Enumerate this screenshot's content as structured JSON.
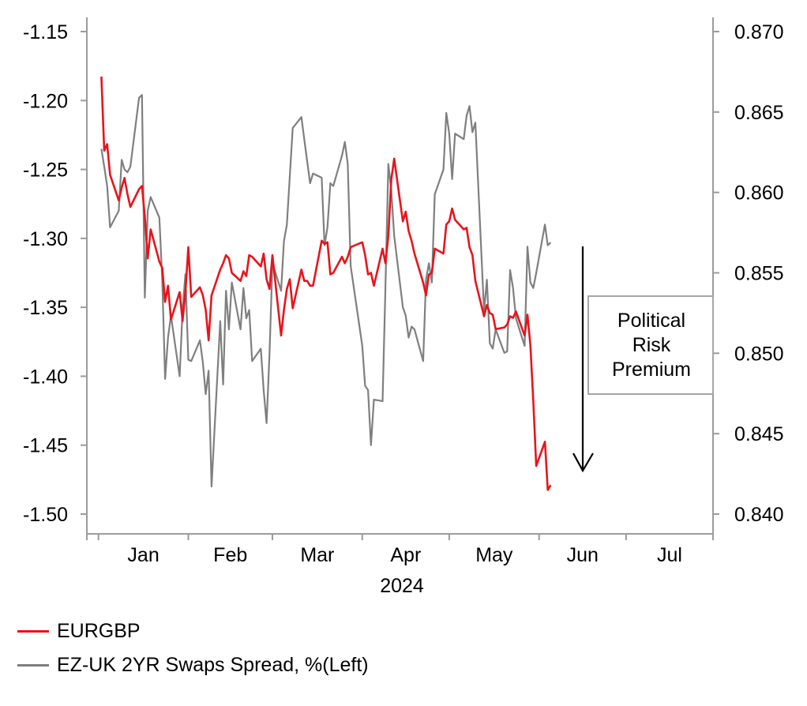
{
  "chart_data": {
    "type": "line",
    "x_axis": {
      "tick_labels": [
        "Jan",
        "Feb",
        "Mar",
        "Apr",
        "May",
        "Jun",
        "Jul"
      ],
      "year_label": "2024",
      "range": [
        "2023-12-28",
        "2024-07-31"
      ]
    },
    "y_left": {
      "range": [
        -1.5,
        -1.15
      ],
      "ticks": [
        "-1.15",
        "-1.20",
        "-1.25",
        "-1.30",
        "-1.35",
        "-1.40",
        "-1.45",
        "-1.50"
      ]
    },
    "y_right": {
      "range": [
        0.84,
        0.87
      ],
      "ticks": [
        "0.870",
        "0.865",
        "0.860",
        "0.855",
        "0.850",
        "0.845",
        "0.840"
      ]
    },
    "annotation": {
      "text_lines": [
        "Political",
        "Risk",
        "Premium"
      ],
      "arrow": "down"
    },
    "series": [
      {
        "name": "EURGBP",
        "axis": "right",
        "color": "#e8141b",
        "points": [
          [
            "2024-01-02",
            0.8672
          ],
          [
            "2024-01-03",
            0.8626
          ],
          [
            "2024-01-04",
            0.863
          ],
          [
            "2024-01-05",
            0.8611
          ],
          [
            "2024-01-08",
            0.8595
          ],
          [
            "2024-01-09",
            0.8603
          ],
          [
            "2024-01-10",
            0.8609
          ],
          [
            "2024-01-11",
            0.8599
          ],
          [
            "2024-01-12",
            0.8591
          ],
          [
            "2024-01-15",
            0.8602
          ],
          [
            "2024-01-16",
            0.8604
          ],
          [
            "2024-01-17",
            0.8585
          ],
          [
            "2024-01-18",
            0.8559
          ],
          [
            "2024-01-19",
            0.8577
          ],
          [
            "2024-01-22",
            0.8557
          ],
          [
            "2024-01-23",
            0.8553
          ],
          [
            "2024-01-24",
            0.8532
          ],
          [
            "2024-01-25",
            0.8542
          ],
          [
            "2024-01-26",
            0.8521
          ],
          [
            "2024-01-29",
            0.8538
          ],
          [
            "2024-01-30",
            0.852
          ],
          [
            "2024-01-31",
            0.8538
          ],
          [
            "2024-02-01",
            0.8566
          ],
          [
            "2024-02-02",
            0.8535
          ],
          [
            "2024-02-05",
            0.8541
          ],
          [
            "2024-02-06",
            0.8536
          ],
          [
            "2024-02-07",
            0.8527
          ],
          [
            "2024-02-08",
            0.8508
          ],
          [
            "2024-02-09",
            0.8536
          ],
          [
            "2024-02-12",
            0.8552
          ],
          [
            "2024-02-13",
            0.8556
          ],
          [
            "2024-02-14",
            0.8561
          ],
          [
            "2024-02-15",
            0.8559
          ],
          [
            "2024-02-16",
            0.855
          ],
          [
            "2024-02-19",
            0.8545
          ],
          [
            "2024-02-20",
            0.8551
          ],
          [
            "2024-02-21",
            0.8548
          ],
          [
            "2024-02-22",
            0.8561
          ],
          [
            "2024-02-23",
            0.856
          ],
          [
            "2024-02-26",
            0.8554
          ],
          [
            "2024-02-27",
            0.8562
          ],
          [
            "2024-02-28",
            0.8546
          ],
          [
            "2024-02-29",
            0.854
          ],
          [
            "2024-03-01",
            0.8561
          ],
          [
            "2024-03-04",
            0.8511
          ],
          [
            "2024-03-05",
            0.8527
          ],
          [
            "2024-03-06",
            0.854
          ],
          [
            "2024-03-07",
            0.8546
          ],
          [
            "2024-03-08",
            0.8528
          ],
          [
            "2024-03-11",
            0.8552
          ],
          [
            "2024-03-12",
            0.8545
          ],
          [
            "2024-03-13",
            0.8545
          ],
          [
            "2024-03-14",
            0.8542
          ],
          [
            "2024-03-15",
            0.8542
          ],
          [
            "2024-03-18",
            0.857
          ],
          [
            "2024-03-19",
            0.8568
          ],
          [
            "2024-03-20",
            0.8569
          ],
          [
            "2024-03-21",
            0.8549
          ],
          [
            "2024-03-22",
            0.855
          ],
          [
            "2024-03-25",
            0.856
          ],
          [
            "2024-03-26",
            0.8556
          ],
          [
            "2024-03-27",
            0.856
          ],
          [
            "2024-03-28",
            0.8566
          ],
          [
            "2024-04-01",
            0.8569
          ],
          [
            "2024-04-02",
            0.8561
          ],
          [
            "2024-04-03",
            0.8549
          ],
          [
            "2024-04-04",
            0.855
          ],
          [
            "2024-04-05",
            0.8542
          ],
          [
            "2024-04-08",
            0.8565
          ],
          [
            "2024-04-09",
            0.8556
          ],
          [
            "2024-04-10",
            0.8573
          ],
          [
            "2024-04-11",
            0.8608
          ],
          [
            "2024-04-12",
            0.8621
          ],
          [
            "2024-04-15",
            0.8582
          ],
          [
            "2024-04-16",
            0.8588
          ],
          [
            "2024-04-17",
            0.8576
          ],
          [
            "2024-04-18",
            0.857
          ],
          [
            "2024-04-19",
            0.8562
          ],
          [
            "2024-04-22",
            0.8544
          ],
          [
            "2024-04-23",
            0.8536
          ],
          [
            "2024-04-24",
            0.8549
          ],
          [
            "2024-04-25",
            0.855
          ],
          [
            "2024-04-26",
            0.8565
          ],
          [
            "2024-04-29",
            0.8562
          ],
          [
            "2024-04-30",
            0.858
          ],
          [
            "2024-05-01",
            0.8582
          ],
          [
            "2024-05-02",
            0.859
          ],
          [
            "2024-05-03",
            0.8583
          ],
          [
            "2024-05-06",
            0.8577
          ],
          [
            "2024-05-07",
            0.8578
          ],
          [
            "2024-05-08",
            0.8566
          ],
          [
            "2024-05-09",
            0.8561
          ],
          [
            "2024-05-10",
            0.8545
          ],
          [
            "2024-05-13",
            0.8523
          ],
          [
            "2024-05-14",
            0.853
          ],
          [
            "2024-05-15",
            0.8525
          ],
          [
            "2024-05-16",
            0.8524
          ],
          [
            "2024-05-17",
            0.8515
          ],
          [
            "2024-05-20",
            0.8516
          ],
          [
            "2024-05-21",
            0.8518
          ],
          [
            "2024-05-22",
            0.8523
          ],
          [
            "2024-05-23",
            0.8522
          ],
          [
            "2024-05-24",
            0.8526
          ],
          [
            "2024-05-27",
            0.8511
          ],
          [
            "2024-05-28",
            0.8524
          ],
          [
            "2024-05-29",
            0.8505
          ],
          [
            "2024-05-30",
            0.847
          ],
          [
            "2024-05-31",
            0.843
          ],
          [
            "2024-06-03",
            0.8445
          ],
          [
            "2024-06-04",
            0.8415
          ],
          [
            "2024-06-05",
            0.8418
          ]
        ]
      },
      {
        "name": "EZ-UK 2YR Swaps Spread, %(Left)",
        "axis": "left",
        "color": "#7f7f7f",
        "points": [
          [
            "2024-01-02",
            -1.235
          ],
          [
            "2024-01-03",
            -1.248
          ],
          [
            "2024-01-04",
            -1.262
          ],
          [
            "2024-01-05",
            -1.292
          ],
          [
            "2024-01-08",
            -1.28
          ],
          [
            "2024-01-09",
            -1.243
          ],
          [
            "2024-01-10",
            -1.25
          ],
          [
            "2024-01-11",
            -1.252
          ],
          [
            "2024-01-12",
            -1.248
          ],
          [
            "2024-01-15",
            -1.198
          ],
          [
            "2024-01-16",
            -1.196
          ],
          [
            "2024-01-17",
            -1.343
          ],
          [
            "2024-01-18",
            -1.28
          ],
          [
            "2024-01-19",
            -1.27
          ],
          [
            "2024-01-22",
            -1.285
          ],
          [
            "2024-01-23",
            -1.33
          ],
          [
            "2024-01-24",
            -1.402
          ],
          [
            "2024-01-25",
            -1.372
          ],
          [
            "2024-01-26",
            -1.356
          ],
          [
            "2024-01-29",
            -1.4
          ],
          [
            "2024-01-30",
            -1.352
          ],
          [
            "2024-01-31",
            -1.326
          ],
          [
            "2024-02-01",
            -1.388
          ],
          [
            "2024-02-02",
            -1.389
          ],
          [
            "2024-02-05",
            -1.374
          ],
          [
            "2024-02-06",
            -1.39
          ],
          [
            "2024-02-07",
            -1.413
          ],
          [
            "2024-02-08",
            -1.396
          ],
          [
            "2024-02-09",
            -1.48
          ],
          [
            "2024-02-12",
            -1.36
          ],
          [
            "2024-02-13",
            -1.406
          ],
          [
            "2024-02-14",
            -1.338
          ],
          [
            "2024-02-15",
            -1.366
          ],
          [
            "2024-02-16",
            -1.332
          ],
          [
            "2024-02-19",
            -1.366
          ],
          [
            "2024-02-20",
            -1.336
          ],
          [
            "2024-02-21",
            -1.358
          ],
          [
            "2024-02-22",
            -1.352
          ],
          [
            "2024-02-23",
            -1.389
          ],
          [
            "2024-02-26",
            -1.38
          ],
          [
            "2024-02-27",
            -1.41
          ],
          [
            "2024-02-28",
            -1.434
          ],
          [
            "2024-02-29",
            -1.384
          ],
          [
            "2024-03-01",
            -1.318
          ],
          [
            "2024-03-04",
            -1.338
          ],
          [
            "2024-03-05",
            -1.302
          ],
          [
            "2024-03-06",
            -1.29
          ],
          [
            "2024-03-07",
            -1.255
          ],
          [
            "2024-03-08",
            -1.22
          ],
          [
            "2024-03-11",
            -1.212
          ],
          [
            "2024-03-12",
            -1.228
          ],
          [
            "2024-03-13",
            -1.244
          ],
          [
            "2024-03-14",
            -1.26
          ],
          [
            "2024-03-15",
            -1.253
          ],
          [
            "2024-03-18",
            -1.256
          ],
          [
            "2024-03-19",
            -1.305
          ],
          [
            "2024-03-20",
            -1.292
          ],
          [
            "2024-03-21",
            -1.26
          ],
          [
            "2024-03-22",
            -1.262
          ],
          [
            "2024-03-25",
            -1.24
          ],
          [
            "2024-03-26",
            -1.23
          ],
          [
            "2024-03-27",
            -1.246
          ],
          [
            "2024-03-28",
            -1.32
          ],
          [
            "2024-04-01",
            -1.378
          ],
          [
            "2024-04-02",
            -1.407
          ],
          [
            "2024-04-03",
            -1.41
          ],
          [
            "2024-04-04",
            -1.45
          ],
          [
            "2024-04-05",
            -1.417
          ],
          [
            "2024-04-08",
            -1.418
          ],
          [
            "2024-04-09",
            -1.336
          ],
          [
            "2024-04-10",
            -1.246
          ],
          [
            "2024-04-11",
            -1.265
          ],
          [
            "2024-04-12",
            -1.298
          ],
          [
            "2024-04-15",
            -1.35
          ],
          [
            "2024-04-16",
            -1.356
          ],
          [
            "2024-04-17",
            -1.372
          ],
          [
            "2024-04-18",
            -1.364
          ],
          [
            "2024-04-19",
            -1.366
          ],
          [
            "2024-04-22",
            -1.389
          ],
          [
            "2024-04-23",
            -1.33
          ],
          [
            "2024-04-24",
            -1.318
          ],
          [
            "2024-04-25",
            -1.332
          ],
          [
            "2024-04-26",
            -1.268
          ],
          [
            "2024-04-29",
            -1.25
          ],
          [
            "2024-04-30",
            -1.209
          ],
          [
            "2024-05-01",
            -1.224
          ],
          [
            "2024-05-02",
            -1.257
          ],
          [
            "2024-05-03",
            -1.224
          ],
          [
            "2024-05-06",
            -1.228
          ],
          [
            "2024-05-07",
            -1.211
          ],
          [
            "2024-05-08",
            -1.204
          ],
          [
            "2024-05-09",
            -1.223
          ],
          [
            "2024-05-10",
            -1.216
          ],
          [
            "2024-05-13",
            -1.353
          ],
          [
            "2024-05-14",
            -1.33
          ],
          [
            "2024-05-15",
            -1.376
          ],
          [
            "2024-05-16",
            -1.38
          ],
          [
            "2024-05-17",
            -1.366
          ],
          [
            "2024-05-20",
            -1.383
          ],
          [
            "2024-05-21",
            -1.382
          ],
          [
            "2024-05-22",
            -1.323
          ],
          [
            "2024-05-23",
            -1.336
          ],
          [
            "2024-05-24",
            -1.358
          ],
          [
            "2024-05-27",
            -1.378
          ],
          [
            "2024-05-28",
            -1.306
          ],
          [
            "2024-05-29",
            -1.332
          ],
          [
            "2024-05-30",
            -1.336
          ],
          [
            "2024-05-31",
            -1.325
          ],
          [
            "2024-06-03",
            -1.29
          ],
          [
            "2024-06-04",
            -1.305
          ],
          [
            "2024-06-05",
            -1.303
          ]
        ]
      }
    ]
  }
}
